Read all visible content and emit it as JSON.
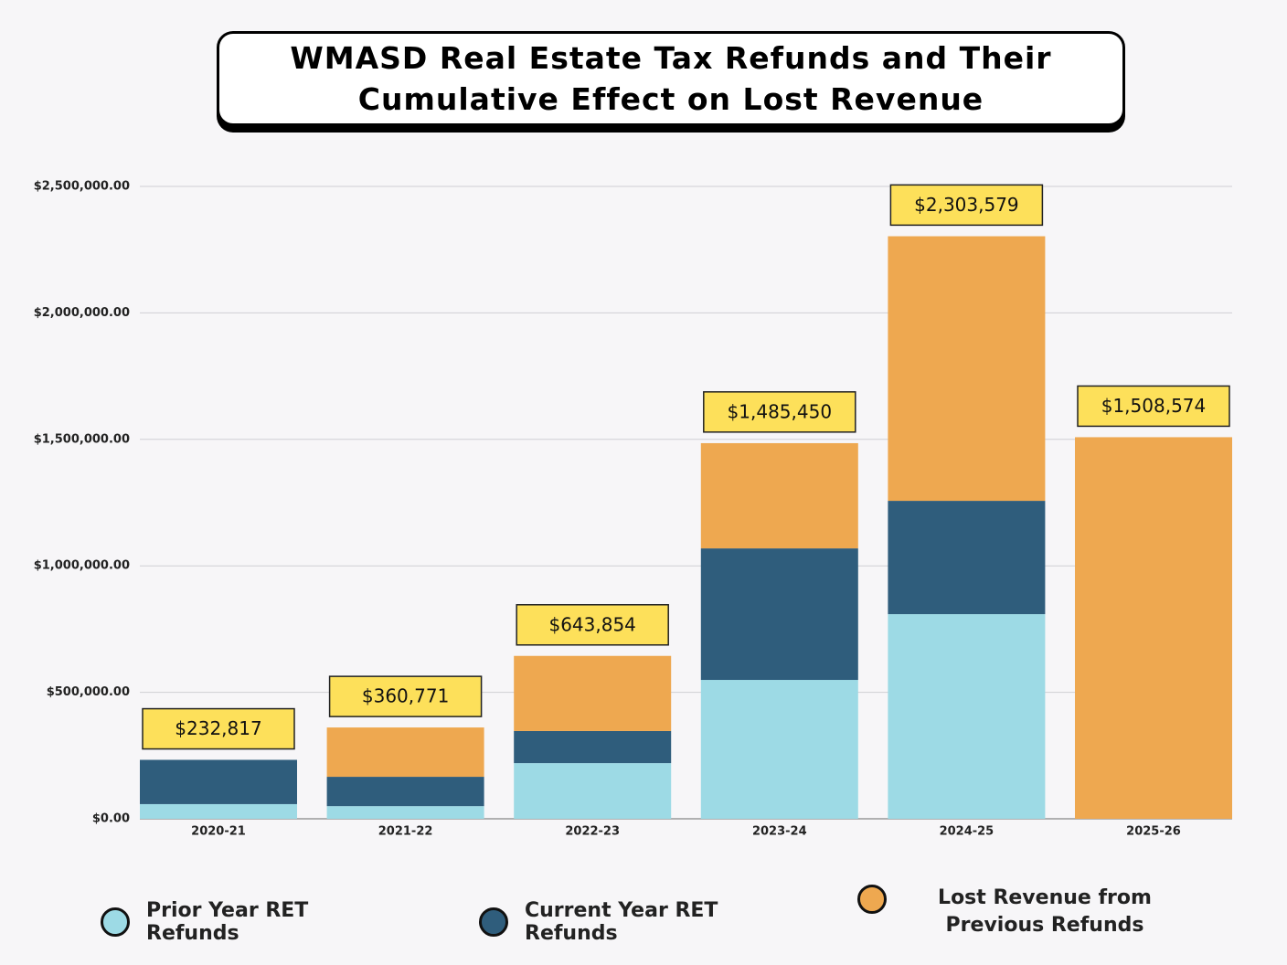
{
  "chart_data": {
    "type": "stacked_bar",
    "title": "WMASD Real Estate Tax Refunds and Their Cumulative Effect on Lost Revenue",
    "categories": [
      "2020-21",
      "2021-22",
      "2022-23",
      "2023-24",
      "2024-25",
      "2025-26"
    ],
    "series": [
      {
        "name": "Prior Year RET Refunds",
        "color": "#9ddae5",
        "values": [
          58000,
          50000,
          220000,
          549000,
          809000,
          0
        ]
      },
      {
        "name": "Current Year RET Refunds",
        "color": "#2f5d7c",
        "values": [
          175000,
          116000,
          127000,
          520000,
          448000,
          0
        ]
      },
      {
        "name": "Lost Revenue from Previous Refunds",
        "color": "#eea850",
        "values": [
          0,
          195000,
          297000,
          416000,
          1046000,
          1508574
        ]
      }
    ],
    "totals": {
      "values": [
        232817,
        360771,
        643854,
        1485450,
        2303579,
        1508574
      ],
      "value_labels": [
        "$232,817",
        "$360,771",
        "$643,854",
        "$1,485,450",
        "$2,303,579",
        "$1,508,574"
      ]
    },
    "ylim": [
      0,
      2500000
    ],
    "yticks": [
      {
        "value": 0,
        "label": "$0.00"
      },
      {
        "value": 500000,
        "label": "$500,000.00"
      },
      {
        "value": 1000000,
        "label": "$1,000,000.00"
      },
      {
        "value": 1500000,
        "label": "$1,500,000.00"
      },
      {
        "value": 2000000,
        "label": "$2,000,000.00"
      },
      {
        "value": 2500000,
        "label": "$2,500,000.00"
      }
    ],
    "grid": true
  }
}
